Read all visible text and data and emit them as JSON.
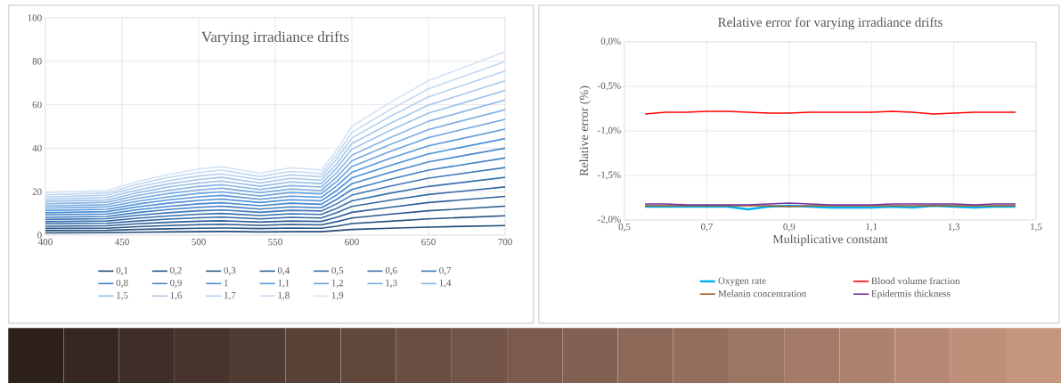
{
  "chart_data": [
    {
      "type": "line",
      "title": "Varying irradiance drifts",
      "x": [
        400,
        440,
        460,
        480,
        500,
        515,
        540,
        560,
        580,
        590,
        600,
        625,
        650,
        700
      ],
      "xlim": [
        400,
        700
      ],
      "xticks": [
        400,
        450,
        500,
        550,
        600,
        650,
        700
      ],
      "ylim": [
        0,
        100
      ],
      "yticks": [
        0,
        20,
        40,
        60,
        80,
        100
      ],
      "grid": true,
      "legend": "bottom",
      "series": [
        {
          "name": "0,1",
          "color": "#234a78",
          "values": [
            1.0,
            1.1,
            1.3,
            1.5,
            1.6,
            1.7,
            1.5,
            1.6,
            1.6,
            2.1,
            2.6,
            3.2,
            3.7,
            4.4
          ]
        },
        {
          "name": "0,2",
          "color": "#275283",
          "values": [
            2.1,
            2.2,
            2.6,
            2.9,
            3.2,
            3.3,
            3.0,
            3.3,
            3.2,
            4.1,
            5.3,
            6.4,
            7.5,
            8.9
          ]
        },
        {
          "name": "0,3",
          "color": "#2c598d",
          "values": [
            3.1,
            3.2,
            3.9,
            4.4,
            4.8,
            5.0,
            4.5,
            4.9,
            4.7,
            6.2,
            7.9,
            9.6,
            11.2,
            13.3
          ]
        },
        {
          "name": "0,4",
          "color": "#306198",
          "values": [
            4.1,
            4.3,
            5.2,
            5.9,
            6.4,
            6.6,
            6.0,
            6.5,
            6.3,
            8.2,
            10.5,
            12.8,
            15.0,
            17.8
          ]
        },
        {
          "name": "0,5",
          "color": "#3469a3",
          "values": [
            5.2,
            5.4,
            6.5,
            7.4,
            8.0,
            8.3,
            7.5,
            8.2,
            7.9,
            10.3,
            13.2,
            16.1,
            18.7,
            22.2
          ]
        },
        {
          "name": "0,6",
          "color": "#3970ad",
          "values": [
            6.2,
            6.5,
            7.8,
            8.8,
            9.6,
            10.0,
            9.0,
            9.8,
            9.5,
            12.3,
            15.8,
            19.3,
            22.4,
            26.6
          ]
        },
        {
          "name": "0,7",
          "color": "#3d78b8",
          "values": [
            7.2,
            7.6,
            9.1,
            10.3,
            11.2,
            11.6,
            10.5,
            11.4,
            11.1,
            14.4,
            18.4,
            22.5,
            26.2,
            31.1
          ]
        },
        {
          "name": "0,8",
          "color": "#4180c3",
          "values": [
            8.2,
            8.6,
            10.4,
            11.8,
            12.8,
            13.3,
            12.0,
            13.0,
            12.6,
            16.4,
            21.0,
            25.7,
            29.9,
            35.5
          ]
        },
        {
          "name": "0,9",
          "color": "#4687cd",
          "values": [
            9.3,
            9.7,
            11.7,
            13.2,
            14.4,
            14.9,
            13.5,
            14.7,
            14.2,
            18.5,
            23.7,
            28.9,
            33.7,
            40.0
          ]
        },
        {
          "name": "1",
          "color": "#4a8fd8",
          "values": [
            10.3,
            10.8,
            13.0,
            14.7,
            16.0,
            16.6,
            15.0,
            16.3,
            15.8,
            20.5,
            26.3,
            32.1,
            37.4,
            44.4
          ]
        },
        {
          "name": "1,1",
          "color": "#5998db",
          "values": [
            11.3,
            11.9,
            14.3,
            16.2,
            17.6,
            18.3,
            16.5,
            17.9,
            17.4,
            22.6,
            28.9,
            35.3,
            41.1,
            48.8
          ]
        },
        {
          "name": "1,2",
          "color": "#69a2de",
          "values": [
            12.4,
            13.0,
            15.6,
            17.6,
            19.2,
            19.9,
            18.0,
            19.6,
            19.0,
            24.6,
            31.6,
            38.5,
            44.9,
            53.3
          ]
        },
        {
          "name": "1,3",
          "color": "#78abe2",
          "values": [
            13.4,
            14.0,
            16.9,
            19.1,
            20.8,
            21.6,
            19.5,
            21.2,
            20.5,
            26.7,
            34.2,
            41.7,
            48.6,
            57.7
          ]
        },
        {
          "name": "1,4",
          "color": "#87b4e5",
          "values": [
            14.4,
            15.1,
            18.2,
            20.6,
            22.4,
            23.2,
            21.0,
            22.8,
            22.1,
            28.7,
            36.8,
            44.9,
            52.4,
            62.2
          ]
        },
        {
          "name": "1,5",
          "color": "#97bee8",
          "values": [
            15.5,
            16.2,
            19.5,
            22.1,
            24.0,
            24.9,
            22.5,
            24.5,
            23.7,
            30.8,
            39.5,
            48.2,
            56.1,
            66.6
          ]
        },
        {
          "name": "1,6",
          "color": "#a6c7eb",
          "values": [
            16.5,
            17.3,
            20.8,
            23.5,
            25.6,
            26.6,
            24.0,
            26.1,
            25.3,
            32.8,
            42.1,
            51.4,
            59.8,
            71.0
          ]
        },
        {
          "name": "1,7",
          "color": "#b5d0ef",
          "values": [
            17.5,
            18.4,
            22.1,
            25.0,
            27.2,
            28.2,
            25.5,
            27.7,
            26.9,
            34.9,
            44.7,
            54.6,
            63.6,
            75.5
          ]
        },
        {
          "name": "1,8",
          "color": "#c5daf2",
          "values": [
            18.5,
            19.4,
            23.4,
            26.5,
            28.8,
            29.9,
            27.0,
            29.3,
            28.4,
            36.9,
            47.3,
            57.8,
            67.3,
            79.9
          ]
        },
        {
          "name": "1,9",
          "color": "#d4e3f5",
          "values": [
            19.6,
            20.5,
            24.7,
            27.9,
            30.4,
            31.5,
            28.5,
            31.0,
            30.0,
            39.0,
            50.0,
            61.0,
            71.1,
            84.4
          ]
        }
      ]
    },
    {
      "type": "line",
      "title": "Relative error for varying irradiance drifts",
      "xlabel": "Multiplicative constant",
      "ylabel": "Relative error (%)",
      "x": [
        0.55,
        0.6,
        0.65,
        0.7,
        0.75,
        0.8,
        0.85,
        0.9,
        0.95,
        1.0,
        1.05,
        1.1,
        1.15,
        1.2,
        1.25,
        1.3,
        1.35,
        1.4,
        1.45
      ],
      "xlim": [
        0.5,
        1.5
      ],
      "xticks": [
        {
          "value": 0.5,
          "label": "0,5"
        },
        {
          "value": 0.7,
          "label": "0,7"
        },
        {
          "value": 0.9,
          "label": "0,9"
        },
        {
          "value": 1.1,
          "label": "1,1"
        },
        {
          "value": 1.3,
          "label": "1,3"
        },
        {
          "value": 1.5,
          "label": "1,5"
        }
      ],
      "ylim": [
        -2.0,
        0.0
      ],
      "yticks": [
        {
          "value": -2.0,
          "label": "-2,0%"
        },
        {
          "value": -1.5,
          "label": "-1,5%"
        },
        {
          "value": -1.0,
          "label": "-1,0%"
        },
        {
          "value": -0.5,
          "label": "-0,5%"
        },
        {
          "value": 0.0,
          "label": "0,0%"
        }
      ],
      "grid": true,
      "legend": "bottom",
      "series": [
        {
          "name": "Oxygen rate",
          "color": "#00b0f0",
          "values": [
            -1.85,
            -1.85,
            -1.85,
            -1.85,
            -1.85,
            -1.88,
            -1.85,
            -1.84,
            -1.85,
            -1.86,
            -1.86,
            -1.86,
            -1.85,
            -1.86,
            -1.84,
            -1.85,
            -1.86,
            -1.85,
            -1.85
          ]
        },
        {
          "name": "Blood volume fraction",
          "color": "#ff0000",
          "values": [
            -0.81,
            -0.79,
            -0.79,
            -0.78,
            -0.78,
            -0.79,
            -0.8,
            -0.8,
            -0.79,
            -0.79,
            -0.79,
            -0.79,
            -0.78,
            -0.79,
            -0.81,
            -0.8,
            -0.79,
            -0.79,
            -0.79
          ]
        },
        {
          "name": "Melanin concentration",
          "color": "#9c5b1e",
          "values": [
            -1.84,
            -1.84,
            -1.84,
            -1.84,
            -1.84,
            -1.84,
            -1.84,
            -1.85,
            -1.84,
            -1.84,
            -1.84,
            -1.84,
            -1.84,
            -1.84,
            -1.84,
            -1.84,
            -1.84,
            -1.84,
            -1.84
          ]
        },
        {
          "name": "Epidermis thickness",
          "color": "#7030a0",
          "values": [
            -1.82,
            -1.82,
            -1.83,
            -1.83,
            -1.83,
            -1.83,
            -1.82,
            -1.81,
            -1.82,
            -1.83,
            -1.83,
            -1.83,
            -1.82,
            -1.82,
            -1.82,
            -1.82,
            -1.83,
            -1.82,
            -1.82
          ]
        }
      ]
    }
  ]
}
